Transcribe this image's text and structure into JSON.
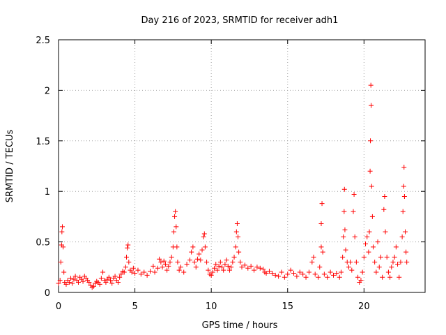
{
  "chart_data": {
    "type": "scatter",
    "title": "Day 216 of 2023, SRMTID for receiver adh1",
    "xlabel": "GPS time / hours",
    "ylabel": "SRMTID / TECUs",
    "xlim": [
      0,
      24
    ],
    "ylim": [
      0,
      2.5
    ],
    "x_ticks": [
      0,
      5,
      10,
      15,
      20
    ],
    "x_tick_labels": [
      "0",
      "5",
      "10",
      "15",
      "20"
    ],
    "y_ticks": [
      0,
      0.5,
      1,
      1.5,
      2,
      2.5
    ],
    "y_tick_labels": [
      "0",
      "0.5",
      "1",
      "1.5",
      "2",
      "2.5"
    ],
    "grid": true,
    "marker": "+",
    "series": [
      {
        "name": "adh1",
        "color": "#ff0000",
        "points": [
          [
            0.0,
            0.09
          ],
          [
            0.1,
            0.12
          ],
          [
            0.15,
            0.3
          ],
          [
            0.2,
            0.47
          ],
          [
            0.22,
            0.6
          ],
          [
            0.25,
            0.65
          ],
          [
            0.3,
            0.45
          ],
          [
            0.35,
            0.2
          ],
          [
            0.4,
            0.1
          ],
          [
            0.5,
            0.08
          ],
          [
            0.6,
            0.12
          ],
          [
            0.7,
            0.1
          ],
          [
            0.8,
            0.14
          ],
          [
            0.9,
            0.09
          ],
          [
            1.0,
            0.13
          ],
          [
            1.1,
            0.16
          ],
          [
            1.2,
            0.12
          ],
          [
            1.3,
            0.1
          ],
          [
            1.4,
            0.15
          ],
          [
            1.5,
            0.13
          ],
          [
            1.6,
            0.11
          ],
          [
            1.7,
            0.16
          ],
          [
            1.8,
            0.14
          ],
          [
            1.9,
            0.12
          ],
          [
            2.0,
            0.1
          ],
          [
            2.1,
            0.07
          ],
          [
            2.2,
            0.05
          ],
          [
            2.3,
            0.06
          ],
          [
            2.4,
            0.09
          ],
          [
            2.5,
            0.11
          ],
          [
            2.6,
            0.1
          ],
          [
            2.7,
            0.08
          ],
          [
            2.8,
            0.14
          ],
          [
            2.9,
            0.2
          ],
          [
            3.0,
            0.12
          ],
          [
            3.1,
            0.1
          ],
          [
            3.2,
            0.13
          ],
          [
            3.3,
            0.15
          ],
          [
            3.4,
            0.12
          ],
          [
            3.5,
            0.09
          ],
          [
            3.6,
            0.14
          ],
          [
            3.7,
            0.16
          ],
          [
            3.8,
            0.12
          ],
          [
            3.9,
            0.1
          ],
          [
            4.0,
            0.15
          ],
          [
            4.1,
            0.18
          ],
          [
            4.2,
            0.21
          ],
          [
            4.3,
            0.2
          ],
          [
            4.4,
            0.25
          ],
          [
            4.45,
            0.35
          ],
          [
            4.5,
            0.44
          ],
          [
            4.55,
            0.47
          ],
          [
            4.6,
            0.3
          ],
          [
            4.7,
            0.22
          ],
          [
            4.8,
            0.2
          ],
          [
            4.9,
            0.24
          ],
          [
            5.0,
            0.19
          ],
          [
            5.2,
            0.22
          ],
          [
            5.4,
            0.18
          ],
          [
            5.6,
            0.2
          ],
          [
            5.8,
            0.17
          ],
          [
            6.0,
            0.21
          ],
          [
            6.2,
            0.26
          ],
          [
            6.3,
            0.2
          ],
          [
            6.5,
            0.24
          ],
          [
            6.6,
            0.33
          ],
          [
            6.7,
            0.3
          ],
          [
            6.8,
            0.25
          ],
          [
            6.9,
            0.31
          ],
          [
            7.0,
            0.28
          ],
          [
            7.1,
            0.22
          ],
          [
            7.2,
            0.26
          ],
          [
            7.3,
            0.3
          ],
          [
            7.4,
            0.35
          ],
          [
            7.5,
            0.45
          ],
          [
            7.55,
            0.6
          ],
          [
            7.6,
            0.75
          ],
          [
            7.65,
            0.8
          ],
          [
            7.7,
            0.65
          ],
          [
            7.75,
            0.45
          ],
          [
            7.8,
            0.3
          ],
          [
            7.9,
            0.22
          ],
          [
            8.0,
            0.25
          ],
          [
            8.2,
            0.2
          ],
          [
            8.4,
            0.28
          ],
          [
            8.6,
            0.32
          ],
          [
            8.7,
            0.4
          ],
          [
            8.8,
            0.45
          ],
          [
            8.9,
            0.3
          ],
          [
            9.0,
            0.25
          ],
          [
            9.1,
            0.33
          ],
          [
            9.2,
            0.38
          ],
          [
            9.3,
            0.32
          ],
          [
            9.4,
            0.42
          ],
          [
            9.5,
            0.55
          ],
          [
            9.55,
            0.58
          ],
          [
            9.6,
            0.45
          ],
          [
            9.7,
            0.3
          ],
          [
            9.8,
            0.22
          ],
          [
            9.9,
            0.18
          ],
          [
            10.0,
            0.17
          ],
          [
            10.1,
            0.2
          ],
          [
            10.2,
            0.24
          ],
          [
            10.3,
            0.28
          ],
          [
            10.4,
            0.22
          ],
          [
            10.5,
            0.26
          ],
          [
            10.6,
            0.3
          ],
          [
            10.7,
            0.25
          ],
          [
            10.8,
            0.22
          ],
          [
            10.9,
            0.28
          ],
          [
            11.0,
            0.32
          ],
          [
            11.1,
            0.26
          ],
          [
            11.2,
            0.22
          ],
          [
            11.3,
            0.25
          ],
          [
            11.4,
            0.3
          ],
          [
            11.5,
            0.35
          ],
          [
            11.6,
            0.45
          ],
          [
            11.65,
            0.6
          ],
          [
            11.7,
            0.68
          ],
          [
            11.75,
            0.55
          ],
          [
            11.8,
            0.4
          ],
          [
            11.9,
            0.3
          ],
          [
            12.0,
            0.25
          ],
          [
            12.2,
            0.27
          ],
          [
            12.4,
            0.24
          ],
          [
            12.6,
            0.26
          ],
          [
            12.8,
            0.22
          ],
          [
            13.0,
            0.25
          ],
          [
            13.2,
            0.24
          ],
          [
            13.4,
            0.23
          ],
          [
            13.5,
            0.2
          ],
          [
            13.6,
            0.19
          ],
          [
            13.8,
            0.21
          ],
          [
            14.0,
            0.19
          ],
          [
            14.2,
            0.17
          ],
          [
            14.4,
            0.16
          ],
          [
            14.6,
            0.2
          ],
          [
            14.8,
            0.15
          ],
          [
            15.0,
            0.18
          ],
          [
            15.2,
            0.22
          ],
          [
            15.4,
            0.19
          ],
          [
            15.6,
            0.16
          ],
          [
            15.8,
            0.2
          ],
          [
            16.0,
            0.18
          ],
          [
            16.2,
            0.15
          ],
          [
            16.4,
            0.2
          ],
          [
            16.6,
            0.3
          ],
          [
            16.7,
            0.35
          ],
          [
            16.8,
            0.18
          ],
          [
            17.0,
            0.15
          ],
          [
            17.1,
            0.25
          ],
          [
            17.2,
            0.45
          ],
          [
            17.25,
            0.88
          ],
          [
            17.2,
            0.68
          ],
          [
            17.3,
            0.4
          ],
          [
            17.4,
            0.18
          ],
          [
            17.6,
            0.15
          ],
          [
            17.8,
            0.2
          ],
          [
            18.0,
            0.17
          ],
          [
            18.2,
            0.19
          ],
          [
            18.4,
            0.15
          ],
          [
            18.5,
            0.2
          ],
          [
            18.6,
            0.35
          ],
          [
            18.65,
            0.55
          ],
          [
            18.7,
            0.8
          ],
          [
            18.72,
            1.02
          ],
          [
            18.75,
            0.62
          ],
          [
            18.8,
            0.42
          ],
          [
            18.9,
            0.3
          ],
          [
            19.0,
            0.25
          ],
          [
            19.1,
            0.3
          ],
          [
            19.2,
            0.22
          ],
          [
            19.3,
            0.8
          ],
          [
            19.35,
            0.97
          ],
          [
            19.4,
            0.55
          ],
          [
            19.5,
            0.3
          ],
          [
            19.6,
            0.15
          ],
          [
            19.7,
            0.1
          ],
          [
            19.8,
            0.12
          ],
          [
            19.9,
            0.2
          ],
          [
            20.0,
            0.35
          ],
          [
            20.1,
            0.48
          ],
          [
            20.2,
            0.55
          ],
          [
            20.3,
            0.4
          ],
          [
            20.35,
            0.6
          ],
          [
            20.4,
            1.2
          ],
          [
            20.42,
            1.5
          ],
          [
            20.45,
            2.05
          ],
          [
            20.47,
            1.85
          ],
          [
            20.5,
            1.05
          ],
          [
            20.55,
            0.75
          ],
          [
            20.6,
            0.45
          ],
          [
            20.7,
            0.3
          ],
          [
            20.8,
            0.2
          ],
          [
            20.9,
            0.5
          ],
          [
            21.0,
            0.25
          ],
          [
            21.1,
            0.35
          ],
          [
            21.2,
            0.15
          ],
          [
            21.3,
            0.82
          ],
          [
            21.35,
            0.95
          ],
          [
            21.4,
            0.6
          ],
          [
            21.5,
            0.35
          ],
          [
            21.6,
            0.2
          ],
          [
            21.7,
            0.15
          ],
          [
            21.8,
            0.25
          ],
          [
            21.9,
            0.3
          ],
          [
            22.0,
            0.35
          ],
          [
            22.1,
            0.45
          ],
          [
            22.2,
            0.28
          ],
          [
            22.3,
            0.15
          ],
          [
            22.4,
            0.3
          ],
          [
            22.5,
            0.55
          ],
          [
            22.55,
            0.8
          ],
          [
            22.6,
            1.05
          ],
          [
            22.62,
            1.24
          ],
          [
            22.65,
            0.95
          ],
          [
            22.7,
            0.6
          ],
          [
            22.75,
            0.4
          ],
          [
            22.8,
            0.3
          ]
        ]
      }
    ]
  }
}
